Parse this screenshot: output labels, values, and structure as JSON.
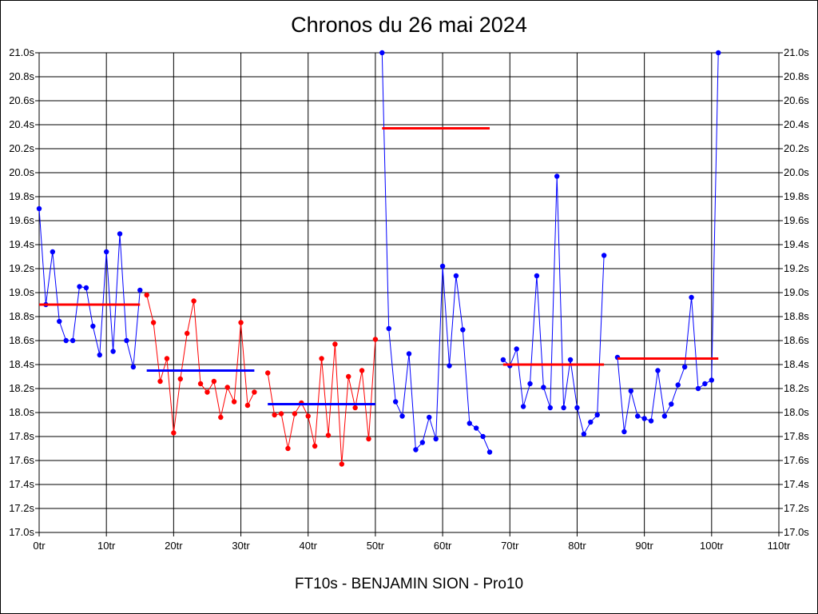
{
  "chart_data": {
    "type": "line",
    "title": "Chronos du 26 mai 2024",
    "subtitle": "FT10s - BENJAMIN SION - Pro10",
    "xlim": [
      0,
      110
    ],
    "ylim": [
      17.0,
      21.0
    ],
    "x_ticks": [
      0,
      10,
      20,
      30,
      40,
      50,
      60,
      70,
      80,
      90,
      100,
      110
    ],
    "x_tick_labels": [
      "0tr",
      "10tr",
      "20tr",
      "30tr",
      "40tr",
      "50tr",
      "60tr",
      "70tr",
      "80tr",
      "90tr",
      "100tr",
      "110tr"
    ],
    "y_ticks": [
      17.0,
      17.2,
      17.4,
      17.6,
      17.8,
      18.0,
      18.2,
      18.4,
      18.6,
      18.8,
      19.0,
      19.2,
      19.4,
      19.6,
      19.8,
      20.0,
      20.2,
      20.4,
      20.6,
      20.8,
      21.0
    ],
    "y_tick_labels": [
      "17.0s",
      "17.2s",
      "17.4s",
      "17.6s",
      "17.8s",
      "18.0s",
      "18.2s",
      "18.4s",
      "18.6s",
      "18.8s",
      "19.0s",
      "19.2s",
      "19.4s",
      "19.6s",
      "19.8s",
      "20.0s",
      "20.2s",
      "20.4s",
      "20.6s",
      "20.8s",
      "21.0s"
    ],
    "grid": true,
    "series": [
      {
        "color": "#0000ff",
        "points": [
          [
            0,
            19.7
          ],
          [
            1,
            18.9
          ],
          [
            2,
            19.34
          ],
          [
            3,
            18.76
          ],
          [
            4,
            18.6
          ],
          [
            5,
            18.6
          ],
          [
            6,
            19.05
          ],
          [
            7,
            19.04
          ],
          [
            8,
            18.72
          ],
          [
            9,
            18.48
          ],
          [
            10,
            19.34
          ],
          [
            11,
            18.51
          ],
          [
            12,
            19.49
          ],
          [
            13,
            18.6
          ],
          [
            14,
            18.38
          ],
          [
            15,
            19.02
          ]
        ]
      },
      {
        "color": "#ff0000",
        "points": [
          [
            16,
            18.98
          ],
          [
            17,
            18.75
          ],
          [
            18,
            18.26
          ],
          [
            19,
            18.45
          ],
          [
            20,
            17.83
          ],
          [
            21,
            18.28
          ],
          [
            22,
            18.66
          ],
          [
            23,
            18.93
          ],
          [
            24,
            18.24
          ],
          [
            25,
            18.17
          ],
          [
            26,
            18.26
          ],
          [
            27,
            17.96
          ],
          [
            28,
            18.21
          ],
          [
            29,
            18.09
          ],
          [
            30,
            18.75
          ],
          [
            31,
            18.06
          ],
          [
            32,
            18.17
          ]
        ]
      },
      {
        "color": "#ff0000",
        "points": [
          [
            34,
            18.33
          ],
          [
            35,
            17.98
          ],
          [
            36,
            17.99
          ],
          [
            37,
            17.7
          ],
          [
            38,
            17.99
          ],
          [
            39,
            18.08
          ],
          [
            40,
            17.97
          ],
          [
            41,
            17.72
          ],
          [
            42,
            18.45
          ],
          [
            43,
            17.81
          ],
          [
            44,
            18.57
          ],
          [
            45,
            17.57
          ],
          [
            46,
            18.3
          ],
          [
            47,
            18.04
          ],
          [
            48,
            18.35
          ],
          [
            49,
            17.78
          ],
          [
            50,
            18.61
          ]
        ]
      },
      {
        "color": "#0000ff",
        "points": [
          [
            51,
            21.0
          ],
          [
            52,
            18.7
          ],
          [
            53,
            18.09
          ],
          [
            54,
            17.97
          ],
          [
            55,
            18.49
          ],
          [
            56,
            17.69
          ],
          [
            57,
            17.75
          ],
          [
            58,
            17.96
          ],
          [
            59,
            17.78
          ],
          [
            60,
            19.22
          ],
          [
            61,
            18.39
          ],
          [
            62,
            19.14
          ],
          [
            63,
            18.69
          ],
          [
            64,
            17.91
          ],
          [
            65,
            17.87
          ],
          [
            66,
            17.8
          ],
          [
            67,
            17.67
          ]
        ]
      },
      {
        "color": "#0000ff",
        "points": [
          [
            69,
            18.44
          ],
          [
            70,
            18.39
          ],
          [
            71,
            18.53
          ],
          [
            72,
            18.05
          ],
          [
            73,
            18.24
          ],
          [
            74,
            19.14
          ],
          [
            75,
            18.21
          ],
          [
            76,
            18.04
          ],
          [
            77,
            19.97
          ],
          [
            78,
            18.04
          ],
          [
            79,
            18.44
          ],
          [
            80,
            18.04
          ],
          [
            81,
            17.82
          ],
          [
            82,
            17.92
          ],
          [
            83,
            17.98
          ],
          [
            84,
            19.31
          ]
        ]
      },
      {
        "color": "#0000ff",
        "points": [
          [
            86,
            18.46
          ],
          [
            87,
            17.84
          ],
          [
            88,
            18.18
          ],
          [
            89,
            17.97
          ],
          [
            90,
            17.95
          ],
          [
            91,
            17.93
          ],
          [
            92,
            18.35
          ],
          [
            93,
            17.97
          ],
          [
            94,
            18.07
          ],
          [
            95,
            18.23
          ],
          [
            96,
            18.38
          ],
          [
            97,
            18.96
          ],
          [
            98,
            18.2
          ],
          [
            99,
            18.24
          ],
          [
            100,
            18.27
          ],
          [
            101,
            21.0
          ]
        ]
      }
    ],
    "averages": [
      {
        "color": "#ff0000",
        "x0": 0,
        "x1": 15,
        "value": 18.9
      },
      {
        "color": "#0000ff",
        "x0": 16,
        "x1": 32,
        "value": 18.35
      },
      {
        "color": "#0000ff",
        "x0": 34,
        "x1": 50,
        "value": 18.07
      },
      {
        "color": "#ff0000",
        "x0": 51,
        "x1": 67,
        "value": 20.37
      },
      {
        "color": "#ff0000",
        "x0": 69,
        "x1": 84,
        "value": 18.4
      },
      {
        "color": "#ff0000",
        "x0": 86,
        "x1": 101,
        "value": 18.45
      }
    ]
  }
}
